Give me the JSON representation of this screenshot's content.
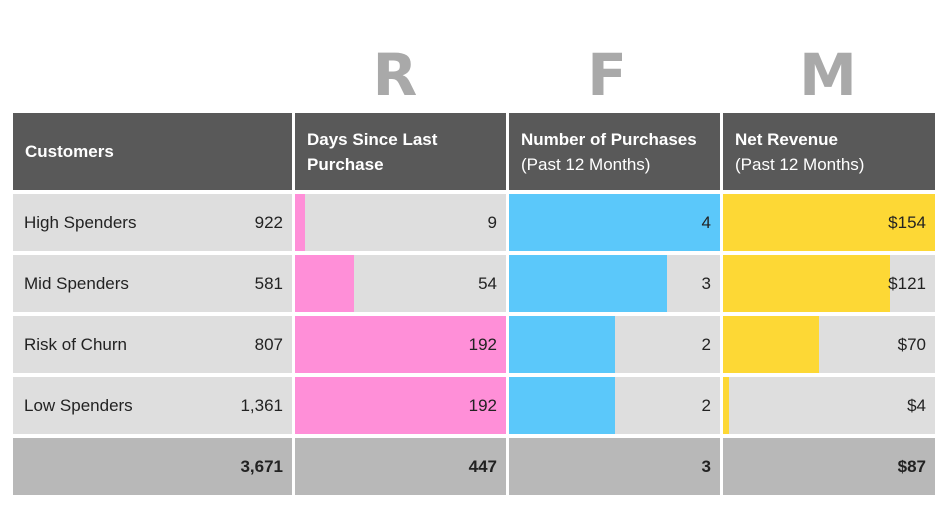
{
  "letters": [
    "R",
    "F",
    "M"
  ],
  "headers": {
    "customers": "Customers",
    "recency": [
      "Days Since Last",
      "Purchase"
    ],
    "frequency": [
      "Number of Purchases",
      "(Past 12 Months)"
    ],
    "monetary": [
      "Net Revenue",
      "(Past 12 Months)"
    ]
  },
  "colors": {
    "recency": "#ff8fd8",
    "frequency": "#5bc8fa",
    "monetary": "#fdd835",
    "header": "#595959",
    "cell": "#dedede",
    "total": "#b8b8b8"
  },
  "rows": [
    {
      "segment": "High Spenders",
      "customers": "922",
      "days": "9",
      "purchases": "4",
      "revenue": "$154"
    },
    {
      "segment": "Mid Spenders",
      "customers": "581",
      "days": "54",
      "purchases": "3",
      "revenue": "$121"
    },
    {
      "segment": "Risk of Churn",
      "customers": "807",
      "days": "192",
      "purchases": "2",
      "revenue": "$70"
    },
    {
      "segment": "Low Spenders",
      "customers": "1,361",
      "days": "192",
      "purchases": "2",
      "revenue": "$4"
    }
  ],
  "totals": {
    "customers": "3,671",
    "days": "447",
    "purchases": "3",
    "revenue": "$87"
  },
  "chart_data": {
    "type": "table",
    "categories": [
      "High Spenders",
      "Mid Spenders",
      "Risk of Churn",
      "Low Spenders"
    ],
    "series": [
      {
        "name": "Days Since Last Purchase",
        "values": [
          9,
          54,
          192,
          192
        ]
      },
      {
        "name": "Number of Purchases (Past 12 Months)",
        "values": [
          4,
          3,
          2,
          2
        ]
      },
      {
        "name": "Net Revenue (Past 12 Months)",
        "values": [
          154,
          121,
          70,
          4
        ]
      }
    ],
    "bar_max": {
      "days": 192,
      "purchases": 4,
      "revenue": 154
    },
    "customers": [
      922,
      581,
      807,
      1361
    ]
  }
}
